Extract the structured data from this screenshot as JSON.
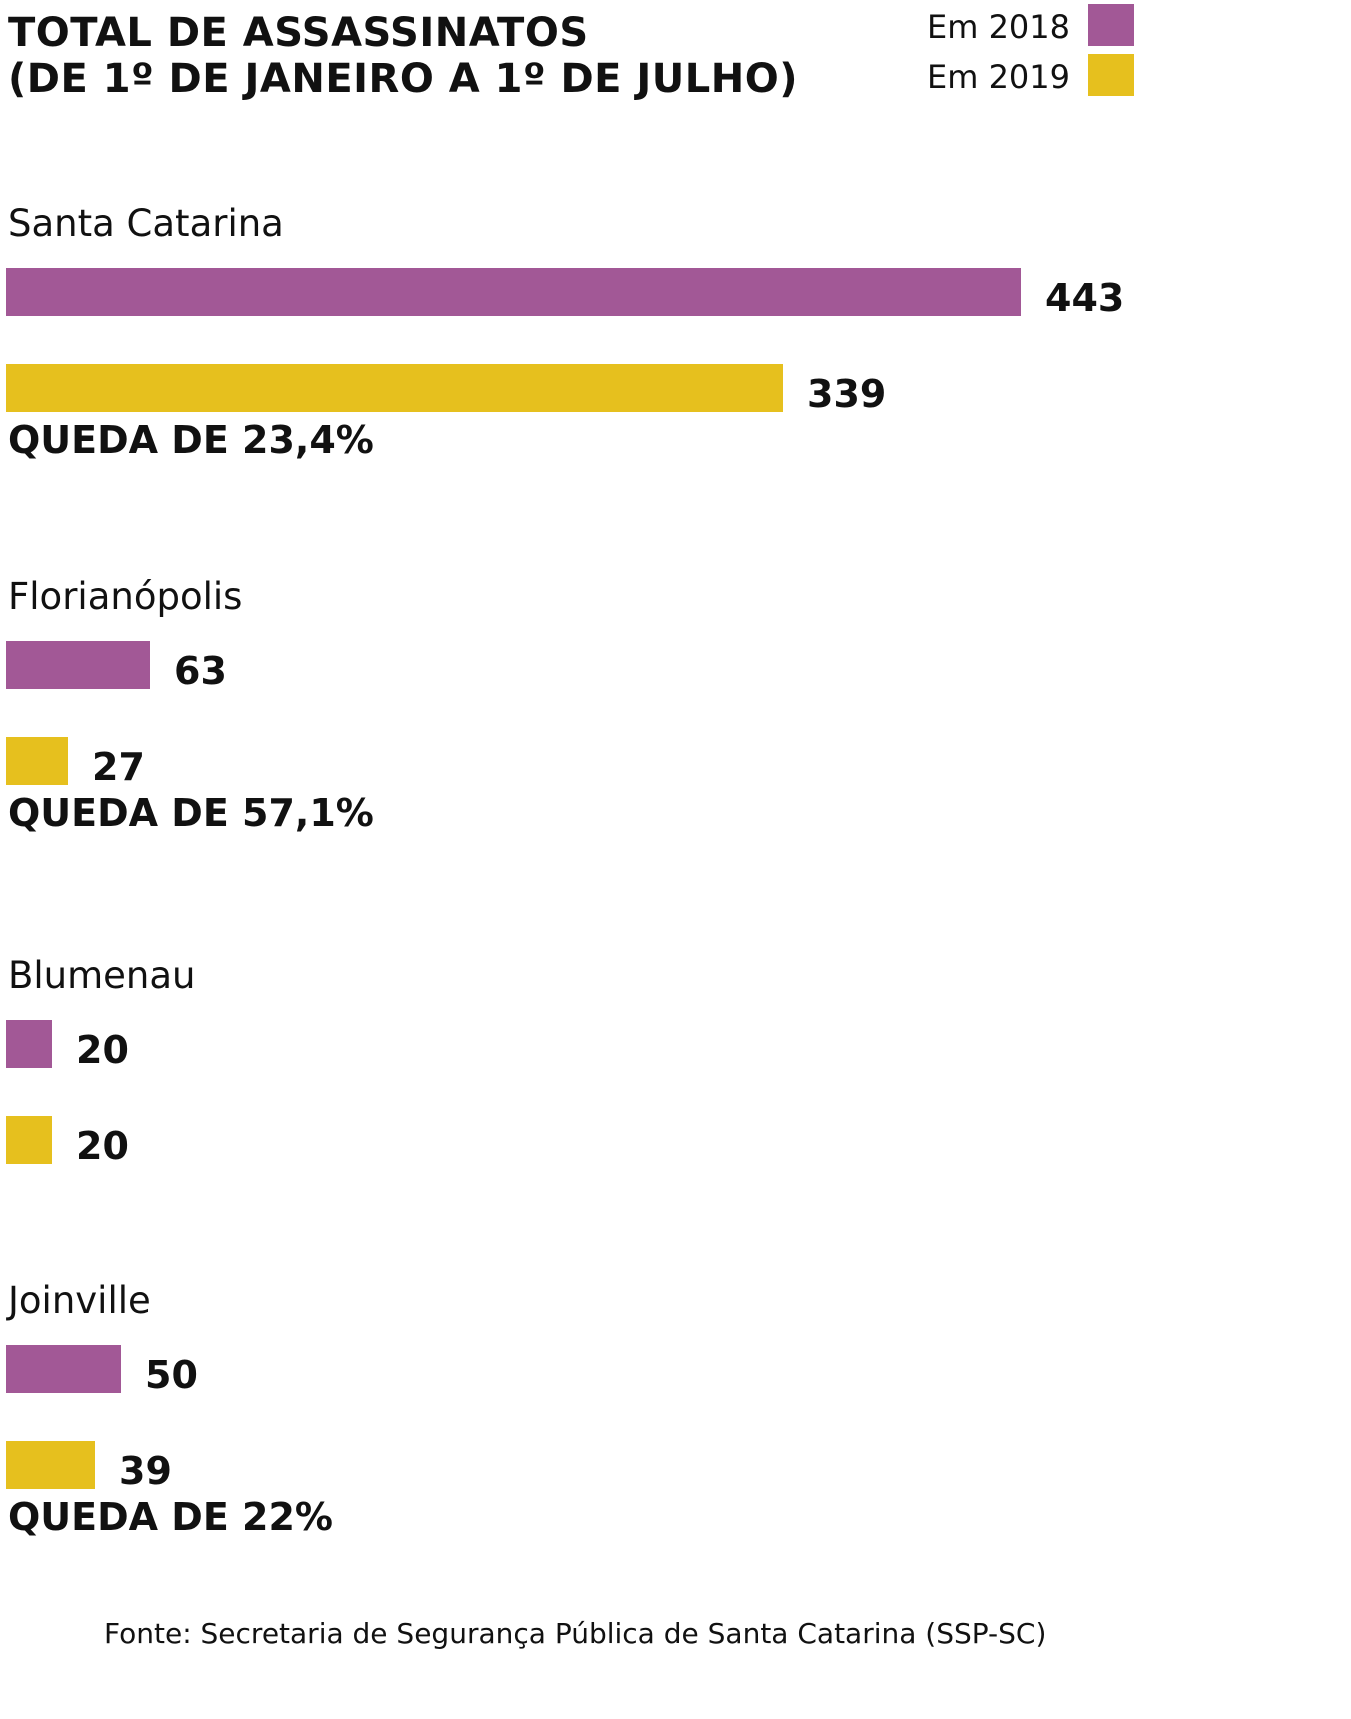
{
  "colors": {
    "series_2018": "#a25896",
    "series_2019": "#e6c01e",
    "text": "#111111"
  },
  "chart_data": {
    "type": "bar",
    "orientation": "horizontal",
    "title": "TOTAL DE ASSASSINATOS",
    "subtitle": "(DE 1º DE JANEIRO A 1º DE JULHO)",
    "xlabel": "",
    "ylabel": "",
    "grid": false,
    "legend_position": "top-right",
    "categories": [
      "Santa Catarina",
      "Florianópolis",
      "Blumenau",
      "Joinville"
    ],
    "series": [
      {
        "name": "Em 2018",
        "color": "#a25896",
        "values": [
          443,
          63,
          20,
          50
        ]
      },
      {
        "name": "Em 2019",
        "color": "#e6c01e",
        "values": [
          339,
          27,
          20,
          39
        ]
      }
    ],
    "annotations": [
      "QUEDA DE 23,4%",
      "QUEDA DE 57,1%",
      "",
      "QUEDA DE 22%"
    ],
    "source": "Fonte: Secretaria de Segurança Pública de Santa Catarina (SSP-SC)"
  }
}
